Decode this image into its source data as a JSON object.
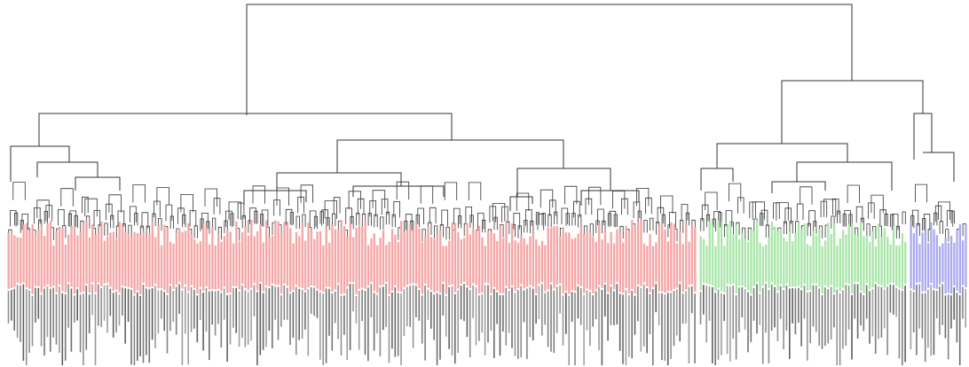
{
  "diagram": {
    "type": "dendrogram",
    "orientation": "top-down",
    "clusters": [
      {
        "id": "cluster-red",
        "color": "#f4a6a6",
        "leaf_count": 230
      },
      {
        "id": "cluster-green",
        "color": "#a9e6a9",
        "leaf_count": 70
      },
      {
        "id": "cluster-blue",
        "color": "#a9a9f0",
        "leaf_count": 20
      }
    ],
    "colors": {
      "branch": "#333333",
      "leaf_label": "#333333",
      "background": "#ffffff"
    },
    "leaf_labels_legible": false
  }
}
